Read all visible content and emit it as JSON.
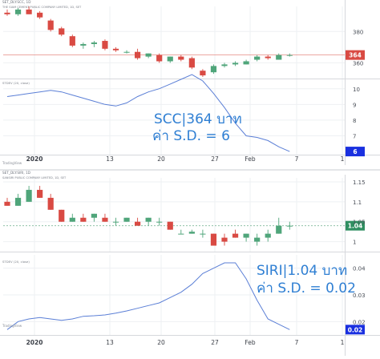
{
  "chart_data": [
    {
      "type": "candlestick",
      "panel": "top-price",
      "header": "SET_DLY:SCC, 1D",
      "title": "THE SIAM CEMENT PUBLIC COMPANY LIMITED, 1D, SET",
      "yticks": [
        380,
        360
      ],
      "ylim": [
        350,
        396
      ],
      "last_price": "364",
      "candles": [
        {
          "o": 392,
          "h": 394,
          "l": 390,
          "c": 391
        },
        {
          "o": 391,
          "h": 395,
          "l": 390,
          "c": 394
        },
        {
          "o": 394,
          "h": 396,
          "l": 391,
          "c": 391
        },
        {
          "o": 392,
          "h": 393,
          "l": 388,
          "c": 389
        },
        {
          "o": 387,
          "h": 388,
          "l": 380,
          "c": 381
        },
        {
          "o": 382,
          "h": 383,
          "l": 377,
          "c": 378
        },
        {
          "o": 377,
          "h": 378,
          "l": 370,
          "c": 371
        },
        {
          "o": 371,
          "h": 373,
          "l": 369,
          "c": 372
        },
        {
          "o": 372,
          "h": 374,
          "l": 370,
          "c": 373
        },
        {
          "o": 374,
          "h": 375,
          "l": 368,
          "c": 369
        },
        {
          "o": 369,
          "h": 370,
          "l": 367,
          "c": 368
        },
        {
          "o": 367,
          "h": 368,
          "l": 366,
          "c": 367
        },
        {
          "o": 367,
          "h": 369,
          "l": 362,
          "c": 363
        },
        {
          "o": 364,
          "h": 366,
          "l": 363,
          "c": 366
        },
        {
          "o": 365,
          "h": 366,
          "l": 360,
          "c": 361
        },
        {
          "o": 361,
          "h": 364,
          "l": 360,
          "c": 364
        },
        {
          "o": 364,
          "h": 365,
          "l": 361,
          "c": 362
        },
        {
          "o": 363,
          "h": 364,
          "l": 356,
          "c": 357
        },
        {
          "o": 355,
          "h": 356,
          "l": 351,
          "c": 352
        },
        {
          "o": 354,
          "h": 359,
          "l": 353,
          "c": 358
        },
        {
          "o": 358,
          "h": 360,
          "l": 357,
          "c": 359
        },
        {
          "o": 359,
          "h": 361,
          "l": 358,
          "c": 360
        },
        {
          "o": 359,
          "h": 362,
          "l": 359,
          "c": 361
        },
        {
          "o": 362,
          "h": 365,
          "l": 361,
          "c": 364
        },
        {
          "o": 364,
          "h": 365,
          "l": 362,
          "c": 363
        },
        {
          "o": 362,
          "h": 366,
          "l": 362,
          "c": 365
        },
        {
          "o": 365,
          "h": 366,
          "l": 364,
          "c": 365
        }
      ]
    },
    {
      "type": "line",
      "panel": "top-stdev",
      "header": "STDEV (20, close)",
      "yticks": [
        10,
        9,
        8,
        7
      ],
      "ylim": [
        5.8,
        10.6
      ],
      "last_value": "6",
      "values": [
        9.5,
        9.6,
        9.7,
        9.8,
        9.9,
        9.8,
        9.6,
        9.4,
        9.2,
        9.0,
        8.9,
        9.1,
        9.5,
        9.8,
        10.0,
        10.3,
        10.6,
        10.9,
        10.5,
        9.7,
        8.8,
        7.8,
        7.0,
        6.9,
        6.7,
        6.3,
        6.0
      ],
      "annotation_line1": "SCC|364 บาท",
      "annotation_line2": "ค่า S.D. = 6"
    },
    {
      "type": "candlestick",
      "panel": "bottom-price",
      "header": "SET_DLY:SIRI, 1D",
      "title": "SANSIRI PUBLIC COMPANY LIMITED, 1D, SET",
      "yticks": [
        1.15,
        1.1,
        1.05,
        1.0
      ],
      "ylim": [
        0.975,
        1.16
      ],
      "last_price": "1.04",
      "candles": [
        {
          "o": 1.1,
          "h": 1.11,
          "l": 1.09,
          "c": 1.09
        },
        {
          "o": 1.09,
          "h": 1.12,
          "l": 1.09,
          "c": 1.11
        },
        {
          "o": 1.1,
          "h": 1.14,
          "l": 1.1,
          "c": 1.13
        },
        {
          "o": 1.13,
          "h": 1.14,
          "l": 1.11,
          "c": 1.11
        },
        {
          "o": 1.11,
          "h": 1.12,
          "l": 1.08,
          "c": 1.08
        },
        {
          "o": 1.08,
          "h": 1.08,
          "l": 1.05,
          "c": 1.05
        },
        {
          "o": 1.05,
          "h": 1.07,
          "l": 1.05,
          "c": 1.06
        },
        {
          "o": 1.06,
          "h": 1.07,
          "l": 1.05,
          "c": 1.05
        },
        {
          "o": 1.06,
          "h": 1.07,
          "l": 1.05,
          "c": 1.07
        },
        {
          "o": 1.06,
          "h": 1.07,
          "l": 1.05,
          "c": 1.05
        },
        {
          "o": 1.05,
          "h": 1.06,
          "l": 1.04,
          "c": 1.05
        },
        {
          "o": 1.05,
          "h": 1.06,
          "l": 1.05,
          "c": 1.06
        },
        {
          "o": 1.05,
          "h": 1.06,
          "l": 1.04,
          "c": 1.04
        },
        {
          "o": 1.05,
          "h": 1.06,
          "l": 1.04,
          "c": 1.06
        },
        {
          "o": 1.05,
          "h": 1.06,
          "l": 1.04,
          "c": 1.05
        },
        {
          "o": 1.05,
          "h": 1.05,
          "l": 1.03,
          "c": 1.03
        },
        {
          "o": 1.02,
          "h": 1.03,
          "l": 1.02,
          "c": 1.02
        },
        {
          "o": 1.02,
          "h": 1.03,
          "l": 1.02,
          "c": 1.025
        },
        {
          "o": 1.02,
          "h": 1.03,
          "l": 1.01,
          "c": 1.02
        },
        {
          "o": 1.02,
          "h": 1.02,
          "l": 0.99,
          "c": 0.99
        },
        {
          "o": 1.01,
          "h": 1.02,
          "l": 0.99,
          "c": 1.0
        },
        {
          "o": 1.02,
          "h": 1.03,
          "l": 1.01,
          "c": 1.01
        },
        {
          "o": 1.01,
          "h": 1.02,
          "l": 1.0,
          "c": 1.02
        },
        {
          "o": 1.0,
          "h": 1.02,
          "l": 0.99,
          "c": 1.01
        },
        {
          "o": 1.01,
          "h": 1.03,
          "l": 1.0,
          "c": 1.02
        },
        {
          "o": 1.02,
          "h": 1.06,
          "l": 1.02,
          "c": 1.04
        },
        {
          "o": 1.04,
          "h": 1.05,
          "l": 1.03,
          "c": 1.04
        }
      ]
    },
    {
      "type": "line",
      "panel": "bottom-stdev",
      "header": "STDEV (20, close)",
      "yticks": [
        0.04,
        0.03,
        0.02
      ],
      "ylim": [
        0.015,
        0.045
      ],
      "last_value": "0.02",
      "values": [
        0.017,
        0.02,
        0.021,
        0.0215,
        0.021,
        0.0205,
        0.021,
        0.022,
        0.0222,
        0.0225,
        0.0232,
        0.024,
        0.025,
        0.026,
        0.027,
        0.029,
        0.031,
        0.034,
        0.038,
        0.04,
        0.042,
        0.042,
        0.036,
        0.028,
        0.021,
        0.019,
        0.017
      ],
      "annotation_line1": "SIRI|1.04 บาท",
      "annotation_line2": "ค่า S.D. = 0.02"
    }
  ],
  "xaxis": {
    "ticks": [
      {
        "label": "2020",
        "bold": true
      },
      {
        "label": "13",
        "bold": false
      },
      {
        "label": "20",
        "bold": false
      },
      {
        "label": "27",
        "bold": false
      },
      {
        "label": "Feb",
        "bold": false
      },
      {
        "label": "7",
        "bold": false
      },
      {
        "label": "1",
        "bold": false
      }
    ]
  },
  "watermark": "TradingView",
  "colors": {
    "up": "#4fa57a",
    "down": "#d94a43",
    "line": "#5b7fd6",
    "last_price": "#2f8f61",
    "label_blue": "#1a30e0",
    "grid": "#eef0f3",
    "annotation": "#2f7fd3"
  }
}
